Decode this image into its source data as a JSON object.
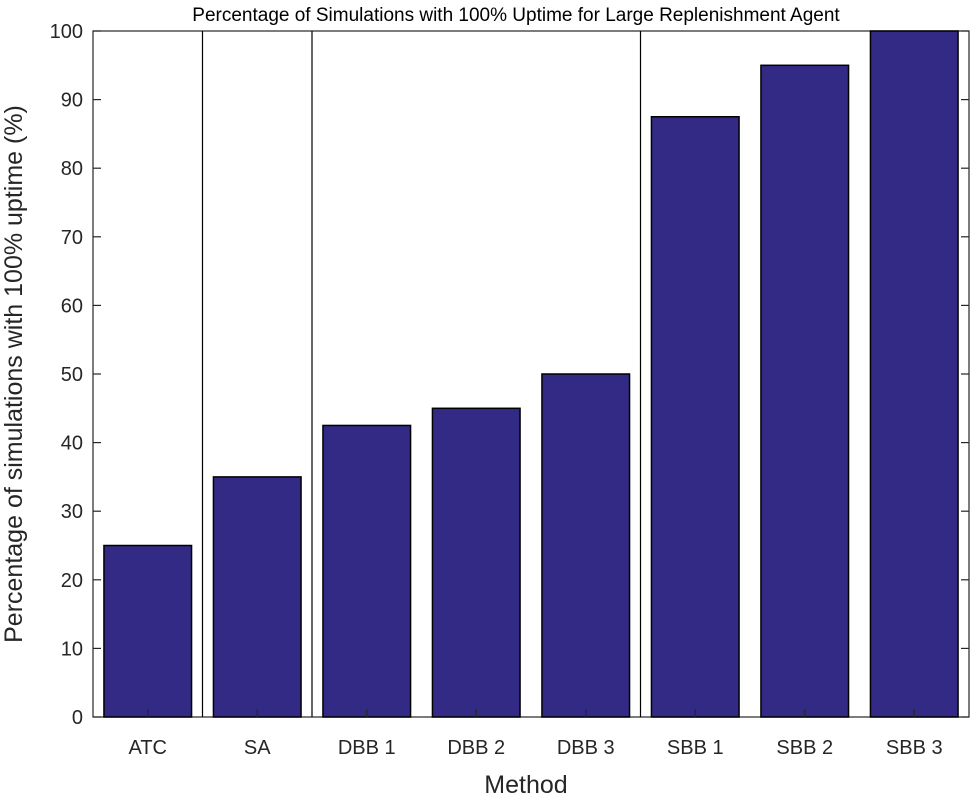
{
  "chart_data": {
    "type": "bar",
    "title": "Percentage of Simulations with 100% Uptime for Large Replenishment Agent",
    "xlabel": "Method",
    "ylabel": "Percentage of simulations with 100% uptime (%)",
    "categories": [
      "ATC",
      "SA",
      "DBB 1",
      "DBB 2",
      "DBB 3",
      "SBB 1",
      "SBB 2",
      "SBB 3"
    ],
    "values": [
      25,
      35,
      42.5,
      45,
      50,
      87.5,
      95,
      100
    ],
    "ylim": [
      0,
      100
    ],
    "yticks": [
      "0",
      "10",
      "20",
      "30",
      "40",
      "50",
      "60",
      "70",
      "80",
      "90",
      "100"
    ],
    "group_separators_after": [
      "ATC",
      "SA",
      "DBB 3"
    ],
    "bar_color": "#332a85",
    "grid": false,
    "legend": "none"
  }
}
